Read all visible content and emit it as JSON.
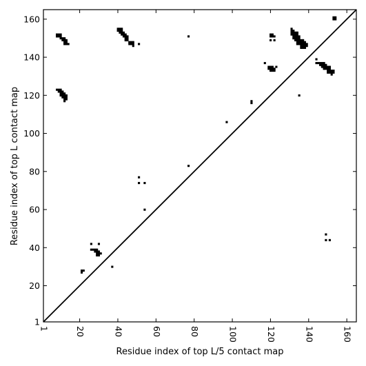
{
  "chart_data": {
    "type": "scatter",
    "title": "",
    "xlabel": "Residue index of top L/5 contact map",
    "ylabel": "Residue index of top L contact map",
    "xlim": [
      1,
      165
    ],
    "ylim": [
      1,
      165
    ],
    "xticks": [
      1,
      20,
      40,
      60,
      80,
      100,
      120,
      140,
      160
    ],
    "yticks": [
      1,
      20,
      40,
      60,
      80,
      100,
      120,
      140,
      160
    ],
    "xtick_labels": [
      "1",
      "20",
      "40",
      "60",
      "80",
      "100",
      "120",
      "140",
      "160"
    ],
    "ytick_labels": [
      "1",
      "20",
      "40",
      "60",
      "80",
      "100",
      "120",
      "140",
      "160"
    ],
    "grid": false,
    "legend": "none",
    "point_color": "#000000",
    "diagonal": {
      "from": [
        1,
        1
      ],
      "to": [
        165,
        165
      ]
    },
    "series": [
      {
        "role": "upper-left (top L contact map)",
        "points": [
          [
            8,
            152
          ],
          [
            9,
            152
          ],
          [
            10,
            152
          ],
          [
            8,
            151
          ],
          [
            9,
            151
          ],
          [
            10,
            151
          ],
          [
            10,
            150
          ],
          [
            11,
            150
          ],
          [
            12,
            150
          ],
          [
            11,
            149
          ],
          [
            12,
            149
          ],
          [
            13,
            149
          ],
          [
            12,
            148
          ],
          [
            13,
            148
          ],
          [
            12,
            147
          ],
          [
            13,
            147
          ],
          [
            14,
            147
          ],
          [
            8,
            123
          ],
          [
            9,
            123
          ],
          [
            10,
            123
          ],
          [
            9,
            122
          ],
          [
            10,
            122
          ],
          [
            11,
            122
          ],
          [
            10,
            121
          ],
          [
            11,
            121
          ],
          [
            12,
            121
          ],
          [
            10,
            120
          ],
          [
            11,
            120
          ],
          [
            12,
            120
          ],
          [
            13,
            120
          ],
          [
            11,
            119
          ],
          [
            12,
            119
          ],
          [
            13,
            119
          ],
          [
            12,
            118
          ],
          [
            13,
            118
          ],
          [
            12,
            117
          ],
          [
            40,
            155
          ],
          [
            41,
            155
          ],
          [
            42,
            155
          ],
          [
            40,
            154
          ],
          [
            41,
            154
          ],
          [
            42,
            154
          ],
          [
            41,
            153
          ],
          [
            42,
            153
          ],
          [
            43,
            153
          ],
          [
            42,
            152
          ],
          [
            43,
            152
          ],
          [
            44,
            152
          ],
          [
            43,
            151
          ],
          [
            44,
            151
          ],
          [
            45,
            151
          ],
          [
            44,
            150
          ],
          [
            45,
            150
          ],
          [
            44,
            149
          ],
          [
            45,
            149
          ],
          [
            46,
            148
          ],
          [
            47,
            148
          ],
          [
            48,
            148
          ],
          [
            46,
            147
          ],
          [
            47,
            147
          ],
          [
            48,
            147
          ],
          [
            48,
            146
          ],
          [
            51,
            147
          ],
          [
            77,
            151
          ],
          [
            120,
            152
          ],
          [
            121,
            152
          ],
          [
            120,
            151
          ],
          [
            121,
            151
          ],
          [
            122,
            151
          ],
          [
            120,
            149
          ],
          [
            122,
            149
          ],
          [
            117,
            137
          ],
          [
            119,
            135
          ],
          [
            120,
            135
          ],
          [
            121,
            135
          ],
          [
            119,
            134
          ],
          [
            120,
            134
          ],
          [
            121,
            134
          ],
          [
            122,
            134
          ],
          [
            120,
            133
          ],
          [
            121,
            133
          ],
          [
            122,
            133
          ],
          [
            123,
            135
          ],
          [
            131,
            155
          ],
          [
            131,
            154
          ],
          [
            132,
            154
          ],
          [
            131,
            153
          ],
          [
            132,
            153
          ],
          [
            133,
            153
          ],
          [
            134,
            153
          ],
          [
            131,
            152
          ],
          [
            132,
            152
          ],
          [
            133,
            152
          ],
          [
            134,
            152
          ],
          [
            132,
            151
          ],
          [
            133,
            151
          ],
          [
            134,
            151
          ],
          [
            135,
            151
          ],
          [
            132,
            150
          ],
          [
            133,
            150
          ],
          [
            134,
            150
          ],
          [
            135,
            150
          ],
          [
            133,
            149
          ],
          [
            134,
            149
          ],
          [
            135,
            149
          ],
          [
            136,
            149
          ],
          [
            137,
            149
          ],
          [
            134,
            148
          ],
          [
            135,
            148
          ],
          [
            136,
            148
          ],
          [
            137,
            148
          ],
          [
            138,
            148
          ],
          [
            134,
            147
          ],
          [
            135,
            147
          ],
          [
            136,
            147
          ],
          [
            137,
            147
          ],
          [
            138,
            147
          ],
          [
            139,
            147
          ],
          [
            136,
            146
          ],
          [
            137,
            146
          ],
          [
            138,
            146
          ],
          [
            139,
            146
          ],
          [
            136,
            145
          ],
          [
            137,
            145
          ],
          [
            138,
            145
          ],
          [
            110,
            117
          ],
          [
            110,
            116
          ],
          [
            135,
            120
          ],
          [
            144,
            139
          ],
          [
            144,
            137
          ],
          [
            145,
            137
          ],
          [
            146,
            137
          ],
          [
            147,
            137
          ],
          [
            148,
            137
          ],
          [
            146,
            136
          ],
          [
            147,
            136
          ],
          [
            148,
            136
          ],
          [
            149,
            136
          ],
          [
            147,
            135
          ],
          [
            148,
            135
          ],
          [
            149,
            135
          ],
          [
            150,
            135
          ],
          [
            151,
            135
          ],
          [
            148,
            134
          ],
          [
            149,
            134
          ],
          [
            150,
            134
          ],
          [
            151,
            134
          ],
          [
            150,
            133
          ],
          [
            151,
            133
          ],
          [
            152,
            133
          ],
          [
            153,
            133
          ],
          [
            150,
            132
          ],
          [
            151,
            132
          ],
          [
            152,
            132
          ],
          [
            153,
            132
          ],
          [
            152,
            131
          ],
          [
            153,
            161
          ],
          [
            154,
            161
          ],
          [
            153,
            160
          ],
          [
            154,
            160
          ]
        ]
      },
      {
        "role": "lower-right (top L/5 contact map)",
        "points": [
          [
            51,
            77
          ],
          [
            51,
            74
          ],
          [
            54,
            74
          ],
          [
            54,
            60
          ],
          [
            77,
            83
          ],
          [
            97,
            106
          ],
          [
            26,
            42
          ],
          [
            30,
            42
          ],
          [
            26,
            39
          ],
          [
            27,
            39
          ],
          [
            28,
            39
          ],
          [
            29,
            39
          ],
          [
            28,
            38
          ],
          [
            29,
            38
          ],
          [
            30,
            38
          ],
          [
            29,
            37
          ],
          [
            30,
            37
          ],
          [
            31,
            37
          ],
          [
            29,
            36
          ],
          [
            30,
            36
          ],
          [
            21,
            28
          ],
          [
            22,
            28
          ],
          [
            21,
            27
          ],
          [
            37,
            30
          ],
          [
            149,
            47
          ],
          [
            149,
            44
          ],
          [
            151,
            44
          ]
        ]
      }
    ]
  }
}
